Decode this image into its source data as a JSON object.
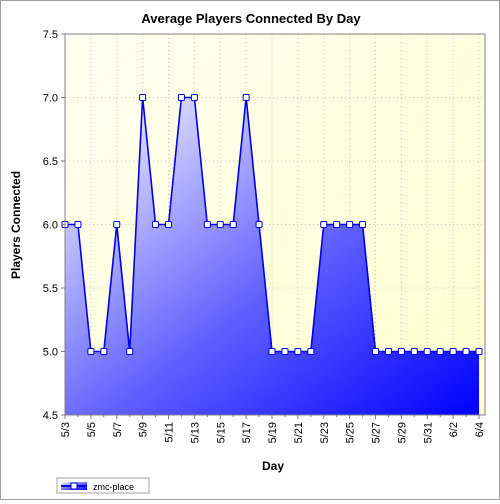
{
  "chart_data": {
    "type": "area",
    "title": "Average Players Connected By Day",
    "xlabel": "Day",
    "ylabel": "Players Connected",
    "ylim": [
      4.5,
      7.5
    ],
    "yticks": [
      "4.5",
      "5.0",
      "5.5",
      "6.0",
      "6.5",
      "7.0",
      "7.5"
    ],
    "x": [
      "5/3",
      "5/4",
      "5/5",
      "5/6",
      "5/7",
      "5/8",
      "5/9",
      "5/10",
      "5/11",
      "5/12",
      "5/13",
      "5/14",
      "5/15",
      "5/16",
      "5/17",
      "5/18",
      "5/19",
      "5/20",
      "5/21",
      "5/22",
      "5/23",
      "5/24",
      "5/25",
      "5/26",
      "5/27",
      "5/28",
      "5/29",
      "5/30",
      "5/31",
      "6/1",
      "6/2",
      "6/3",
      "6/4"
    ],
    "xtick_labels": [
      "5/3",
      "5/5",
      "5/7",
      "5/9",
      "5/11",
      "5/13",
      "5/15",
      "5/17",
      "5/19",
      "5/21",
      "5/23",
      "5/25",
      "5/27",
      "5/29",
      "5/31",
      "6/2",
      "6/4"
    ],
    "series": [
      {
        "name": "zmc-place",
        "values": [
          6,
          6,
          5,
          5,
          6,
          5,
          7,
          6,
          6,
          7,
          7,
          6,
          6,
          6,
          7,
          6,
          5,
          5,
          5,
          5,
          6,
          6,
          6,
          6,
          5,
          5,
          5,
          5,
          5,
          5,
          5,
          5,
          5
        ]
      }
    ],
    "grid": true,
    "legend": "bottom-left",
    "colors": {
      "plot_bg_top": "#fffff0",
      "plot_bg_bottom": "#ffffd0",
      "grid": "#c8c8c8",
      "line": "#0000e0",
      "fill_light": "#ffffff",
      "fill_dark": "#0000ff",
      "marker_fill": "#ffffff",
      "text": "#000000"
    }
  }
}
